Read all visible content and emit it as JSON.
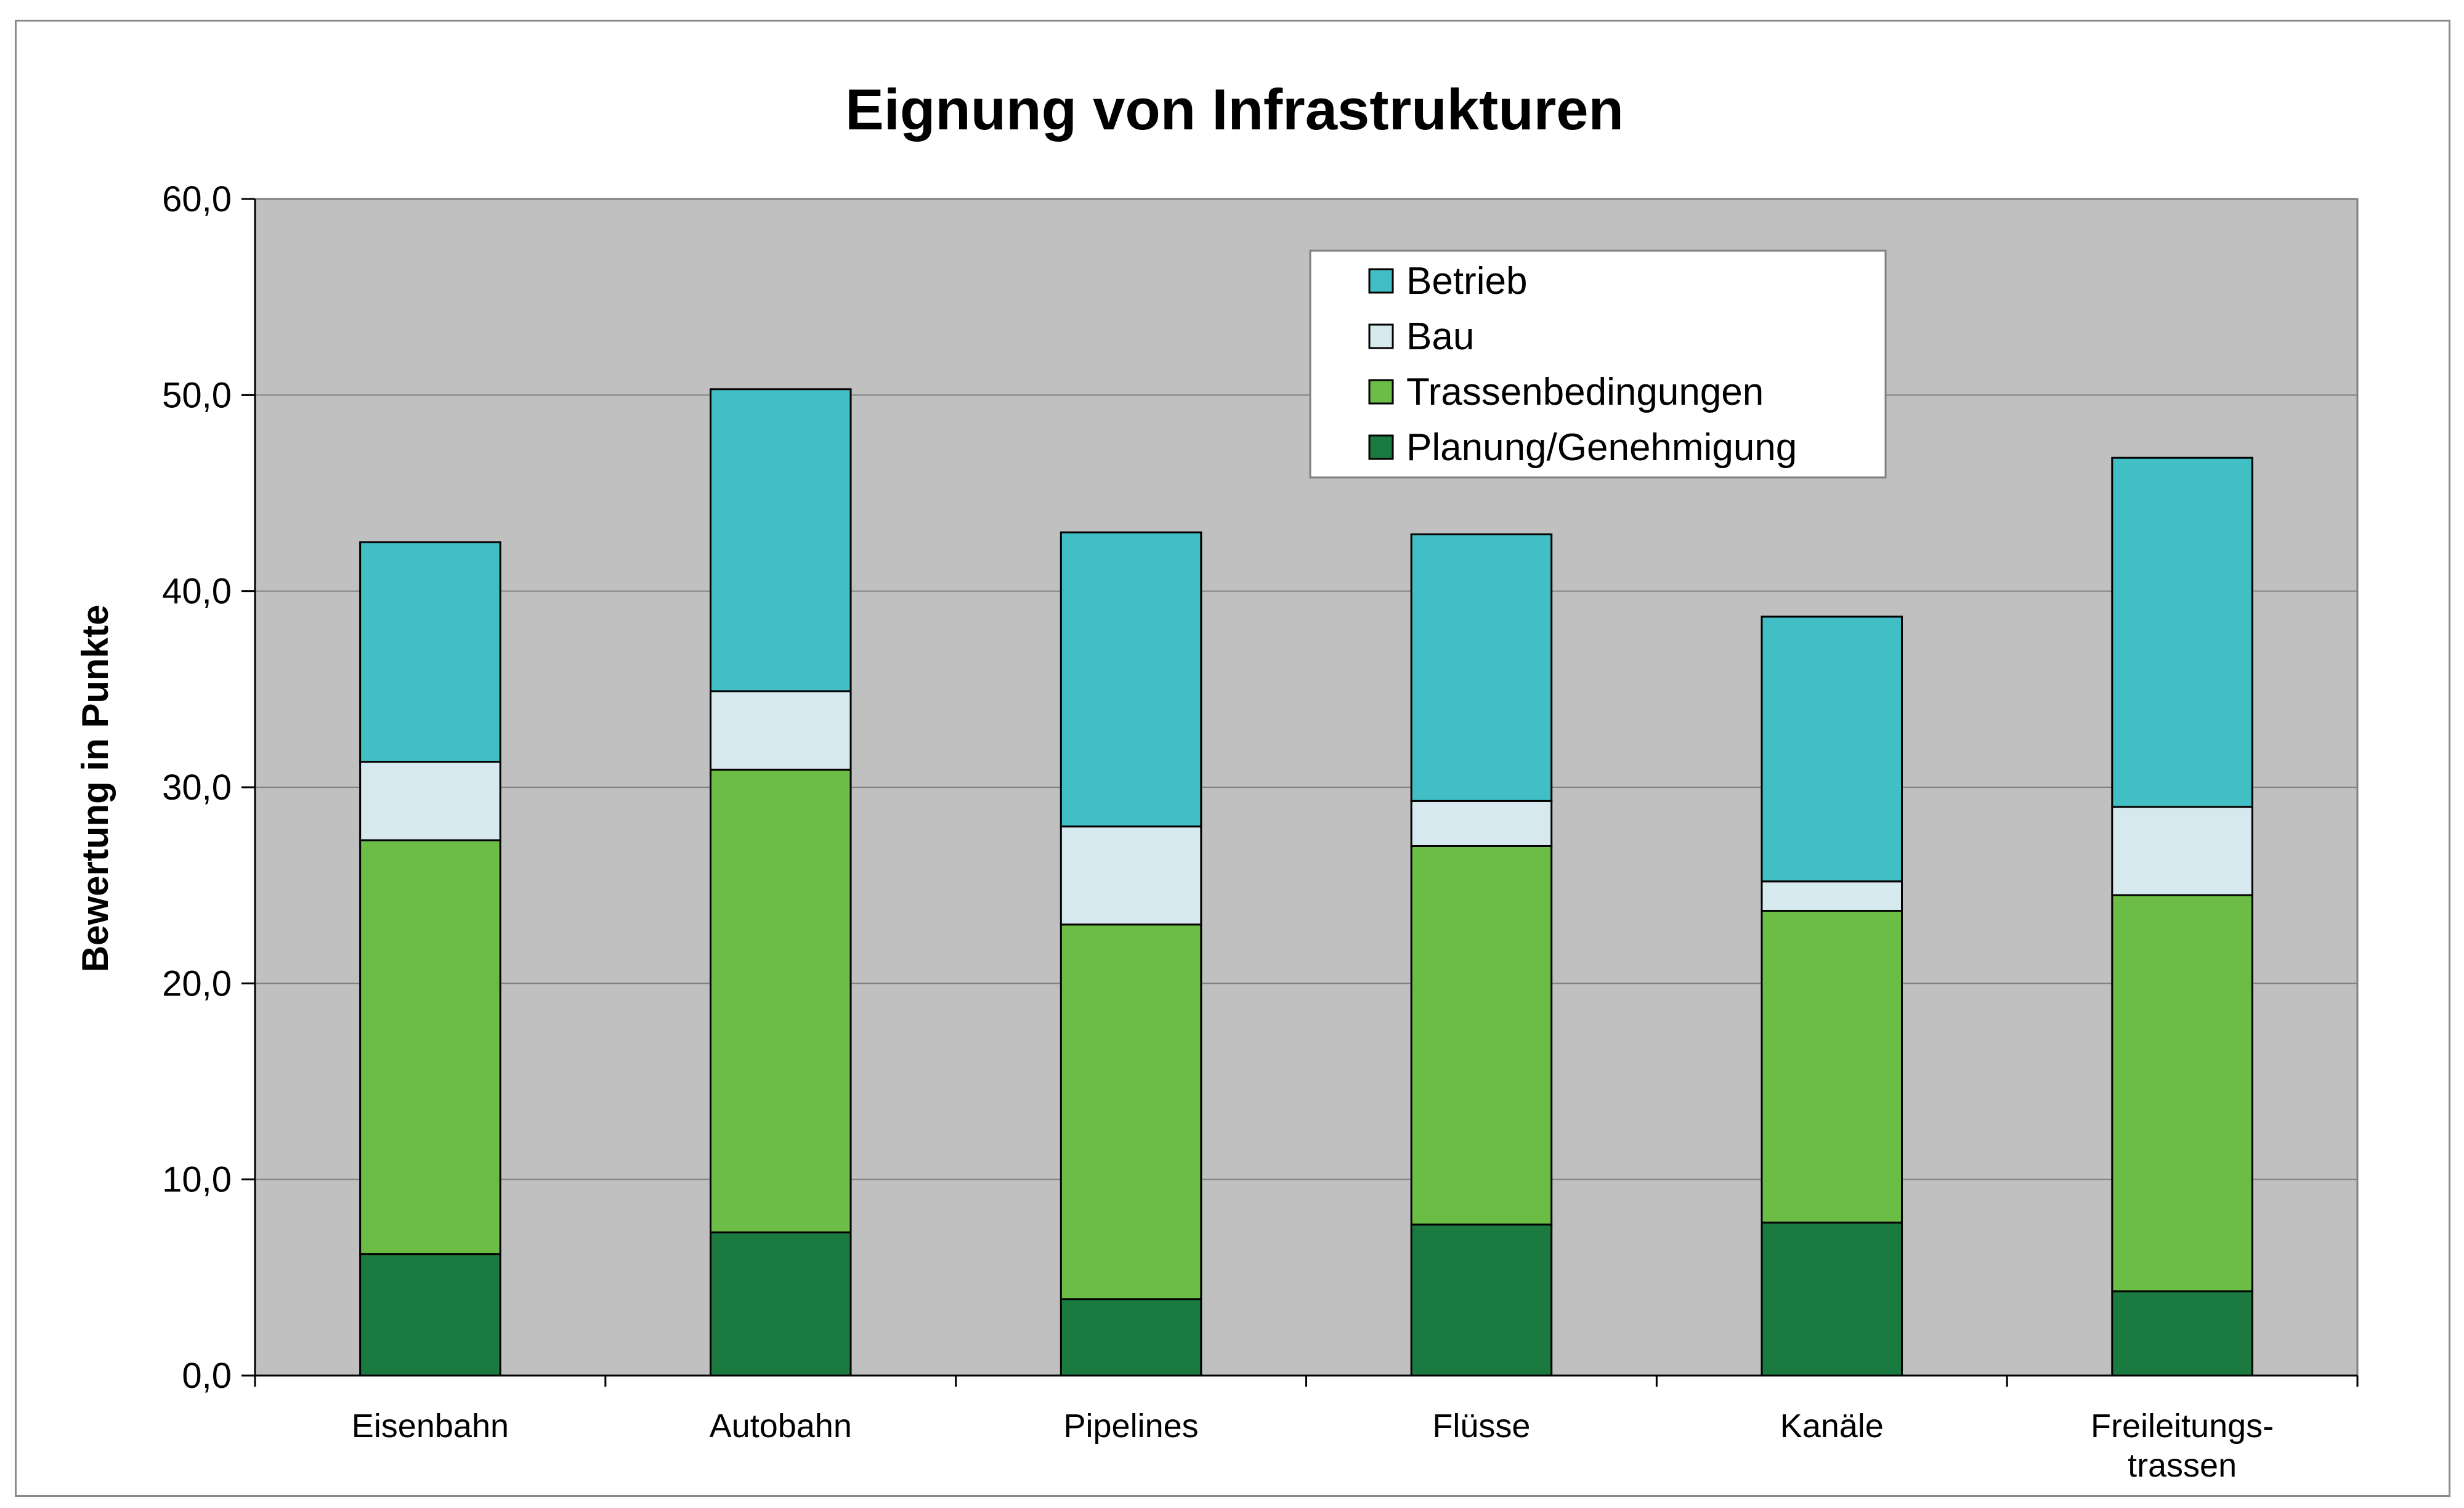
{
  "chart_data": {
    "type": "bar",
    "stacked": true,
    "title": "Eignung von Infrastrukturen",
    "xlabel": "",
    "ylabel": "Bewertung in Punkte",
    "ylim": [
      0,
      60
    ],
    "yticks": [
      "0,0",
      "10,0",
      "20,0",
      "30,0",
      "40,0",
      "50,0",
      "60,0"
    ],
    "grid": true,
    "legend_position": "top-right",
    "categories": [
      [
        "Eisenbahn"
      ],
      [
        "Autobahn"
      ],
      [
        "Pipelines"
      ],
      [
        "Flüsse"
      ],
      [
        "Kanäle"
      ],
      [
        "Freileitungs-",
        "trassen"
      ]
    ],
    "series": [
      {
        "name": "Planung/Genehmigung",
        "color": "#1a7a40",
        "values": [
          6.2,
          7.3,
          3.9,
          7.7,
          7.8,
          4.3
        ]
      },
      {
        "name": "Trassenbedingungen",
        "color": "#6cbd45",
        "values": [
          21.1,
          23.6,
          19.1,
          19.3,
          15.9,
          20.2
        ]
      },
      {
        "name": "Bau",
        "color": "#d5e9ef",
        "values": [
          4.0,
          4.0,
          5.0,
          2.3,
          1.5,
          4.5
        ]
      },
      {
        "name": "Betrieb",
        "color": "#41bfc4",
        "values": [
          11.2,
          15.4,
          15.0,
          13.6,
          13.5,
          17.8
        ]
      }
    ],
    "legend_order": [
      "Betrieb",
      "Bau",
      "Trassenbedingungen",
      "Planung/Genehmigung"
    ],
    "plot_background": "#c0c0c0",
    "gridline_color": "#808080"
  }
}
